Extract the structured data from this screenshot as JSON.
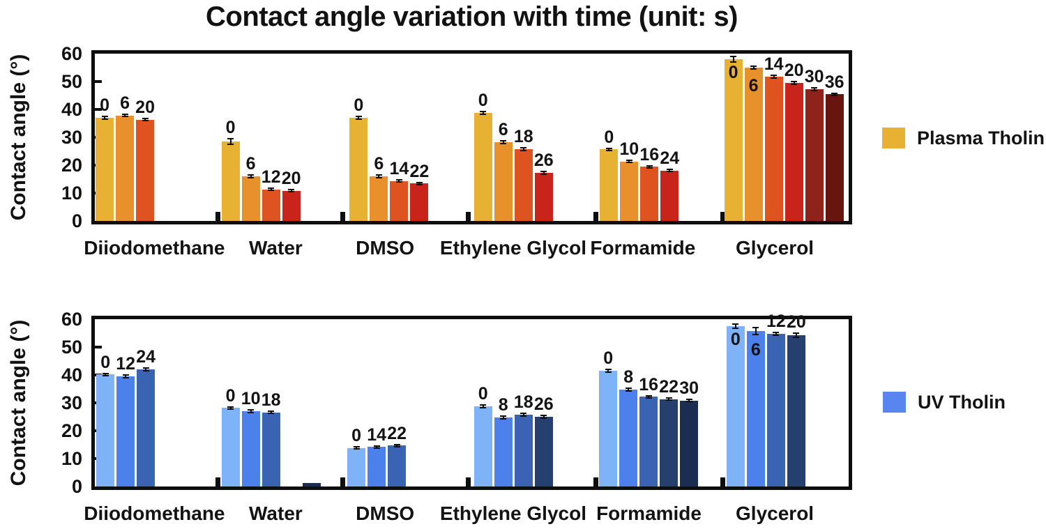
{
  "title": "Contact angle variation with time (unit: s)",
  "legend": [
    {
      "label": "Plasma Tholin",
      "color": "#E7B234"
    },
    {
      "label": "UV Tholin",
      "color": "#5686EE"
    }
  ],
  "chart_data": [
    {
      "type": "bar",
      "name": "plasma-tholin",
      "ylabel": "Contact angle (°)",
      "xlabel": "",
      "ylim": [
        0,
        60
      ],
      "yticks": [
        0,
        10,
        20,
        30,
        40,
        50,
        60
      ],
      "time_unit": "s",
      "legend_entry": "Plasma Tholin",
      "grid": false,
      "palette": [
        "#E7B234",
        "#E8902B",
        "#DF5321",
        "#C8241B",
        "#8E231B",
        "#69150F"
      ],
      "boundary_ticks": [
        0.163,
        0.329,
        0.495,
        0.665,
        0.833
      ],
      "groups": [
        {
          "category": "Diiodomethane",
          "label_frac": 0.079,
          "left_frac": 0.001,
          "bars": [
            {
              "t": "0",
              "value": 37.0,
              "err": 0.4
            },
            {
              "t": "6",
              "value": 37.8,
              "err": 0.4
            },
            {
              "t": "20",
              "value": 36.3,
              "err": 0.4
            }
          ]
        },
        {
          "category": "Water",
          "label_frac": 0.24,
          "left_frac": 0.168,
          "bars": [
            {
              "t": "0",
              "value": 28.5,
              "err": 1.0
            },
            {
              "t": "6",
              "value": 16.0,
              "err": 0.4
            },
            {
              "t": "12",
              "value": 11.3,
              "err": 0.4
            },
            {
              "t": "20",
              "value": 10.8,
              "err": 0.4
            }
          ]
        },
        {
          "category": "DMSO",
          "label_frac": 0.385,
          "left_frac": 0.338,
          "bars": [
            {
              "t": "0",
              "value": 37.0,
              "err": 0.4
            },
            {
              "t": "6",
              "value": 16.0,
              "err": 0.4
            },
            {
              "t": "14",
              "value": 14.3,
              "err": 0.4
            },
            {
              "t": "22",
              "value": 13.4,
              "err": 0.4
            }
          ]
        },
        {
          "category": "Ethylene Glycol",
          "label_frac": 0.555,
          "left_frac": 0.503,
          "bars": [
            {
              "t": "0",
              "value": 38.7,
              "err": 0.5
            },
            {
              "t": "6",
              "value": 28.2,
              "err": 0.5
            },
            {
              "t": "18",
              "value": 25.7,
              "err": 0.5
            },
            {
              "t": "26",
              "value": 17.3,
              "err": 0.5
            }
          ]
        },
        {
          "category": "Formamide",
          "label_frac": 0.727,
          "left_frac": 0.67,
          "bars": [
            {
              "t": "0",
              "value": 25.7,
              "err": 0.4
            },
            {
              "t": "10",
              "value": 21.3,
              "err": 0.4
            },
            {
              "t": "16",
              "value": 19.4,
              "err": 0.4
            },
            {
              "t": "24",
              "value": 18.1,
              "err": 0.4
            }
          ]
        },
        {
          "category": "Glycerol",
          "label_frac": 0.902,
          "left_frac": 0.835,
          "bars": [
            {
              "t": "0",
              "value": 58.0,
              "err": 1.0,
              "inside": true,
              "dy": 6
            },
            {
              "t": "6",
              "value": 55.0,
              "err": 0.5,
              "inside": true,
              "dy": 13
            },
            {
              "t": "14",
              "value": 51.7,
              "err": 0.5
            },
            {
              "t": "20",
              "value": 49.4,
              "err": 0.5
            },
            {
              "t": "30",
              "value": 47.3,
              "err": 0.5
            },
            {
              "t": "36",
              "value": 45.4,
              "err": 0.4
            }
          ]
        }
      ]
    },
    {
      "type": "bar",
      "name": "uv-tholin",
      "ylabel": "Contact angle (°)",
      "xlabel": "",
      "ylim": [
        0,
        60
      ],
      "yticks": [
        0,
        10,
        20,
        30,
        40,
        50,
        60
      ],
      "time_unit": "s",
      "legend_entry": "UV Tholin",
      "grid": false,
      "palette": [
        "#7EB3F7",
        "#4C80EB",
        "#3A64B3",
        "#25406E",
        "#1B2D50"
      ],
      "boundary_ticks": [
        0.163,
        0.329,
        0.495,
        0.665,
        0.833
      ],
      "groups": [
        {
          "category": "Diiodomethane",
          "label_frac": 0.079,
          "left_frac": 0.002,
          "bars": [
            {
              "t": "0",
              "value": 40.2,
              "err": 0.4
            },
            {
              "t": "12",
              "value": 39.6,
              "err": 0.5
            },
            {
              "t": "24",
              "value": 42.0,
              "err": 0.4
            }
          ]
        },
        {
          "category": "Water",
          "label_frac": 0.24,
          "left_frac": 0.168,
          "bars": [
            {
              "t": "0",
              "value": 28.2,
              "err": 0.4
            },
            {
              "t": "10",
              "value": 27.0,
              "err": 0.4
            },
            {
              "t": "18",
              "value": 26.6,
              "err": 0.4
            },
            {
              "t": "",
              "value": 1.3,
              "err": 0,
              "slot": 4,
              "ci": 4
            }
          ]
        },
        {
          "category": "DMSO",
          "label_frac": 0.385,
          "left_frac": 0.335,
          "bars": [
            {
              "t": "0",
              "value": 13.8,
              "err": 0.4
            },
            {
              "t": "14",
              "value": 14.2,
              "err": 0.4
            },
            {
              "t": "22",
              "value": 14.7,
              "err": 0.4
            }
          ]
        },
        {
          "category": "Ethylene Glycol",
          "label_frac": 0.555,
          "left_frac": 0.503,
          "bars": [
            {
              "t": "0",
              "value": 28.8,
              "err": 0.5
            },
            {
              "t": "8",
              "value": 24.7,
              "err": 0.5
            },
            {
              "t": "18",
              "value": 25.7,
              "err": 0.5
            },
            {
              "t": "26",
              "value": 25.0,
              "err": 0.4
            }
          ]
        },
        {
          "category": "Formamide",
          "label_frac": 0.735,
          "left_frac": 0.669,
          "bars": [
            {
              "t": "0",
              "value": 41.6,
              "err": 0.5
            },
            {
              "t": "8",
              "value": 34.7,
              "err": 0.5
            },
            {
              "t": "16",
              "value": 32.2,
              "err": 0.4
            },
            {
              "t": "22",
              "value": 31.3,
              "err": 0.4
            },
            {
              "t": "30",
              "value": 30.8,
              "err": 0.4
            }
          ]
        },
        {
          "category": "Glycerol",
          "label_frac": 0.902,
          "left_frac": 0.838,
          "bars": [
            {
              "t": "0",
              "value": 57.5,
              "err": 0.8,
              "inside": true,
              "dy": 6
            },
            {
              "t": "6",
              "value": 55.7,
              "err": 1.2,
              "inside": true,
              "dy": 14
            },
            {
              "t": "12",
              "value": 54.7,
              "err": 0.5
            },
            {
              "t": "20",
              "value": 54.2,
              "err": 0.8
            }
          ]
        }
      ]
    }
  ]
}
